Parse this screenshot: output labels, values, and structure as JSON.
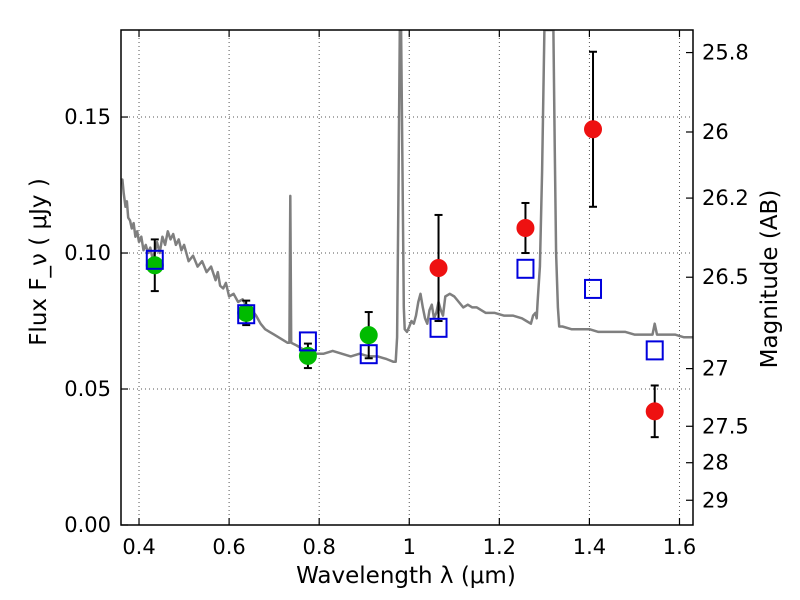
{
  "chart_data": {
    "type": "scatter",
    "title": "",
    "xlabel": "Wavelength  λ (μm)",
    "ylabel": "Flux  F_ν  ( μJy )",
    "ylabel_right": "Magnitude (AB)",
    "xlim": [
      0.36,
      1.63
    ],
    "ylim": [
      0.0,
      0.182
    ],
    "grid": true,
    "x_ticks": [
      0.4,
      0.6,
      0.8,
      1.0,
      1.2,
      1.4,
      1.6
    ],
    "x_tick_labels": [
      "0.4",
      "0.6",
      "0.8",
      "1",
      "1.2",
      "1.4",
      "1.6"
    ],
    "y_ticks": [
      0.0,
      0.05,
      0.1,
      0.15
    ],
    "y_tick_labels": [
      "0.00",
      "0.05",
      "0.10",
      "0.15"
    ],
    "right_ticks": [
      {
        "label": "25.8",
        "flux": 0.1737
      },
      {
        "label": "26",
        "flux": 0.1445
      },
      {
        "label": "26.2",
        "flux": 0.1202
      },
      {
        "label": "26.5",
        "flux": 0.0911
      },
      {
        "label": "27",
        "flux": 0.0575
      },
      {
        "label": "27.5",
        "flux": 0.0363
      },
      {
        "label": "28",
        "flux": 0.0229
      },
      {
        "label": "29",
        "flux": 0.0091
      }
    ],
    "series": [
      {
        "marker": "circle",
        "color": "#00bb00",
        "points": [
          {
            "x": 0.435,
            "y": 0.0955,
            "err": 0.0095
          },
          {
            "x": 0.638,
            "y": 0.078,
            "err": 0.0045
          },
          {
            "x": 0.775,
            "y": 0.0622,
            "err": 0.0045
          },
          {
            "x": 0.91,
            "y": 0.0698,
            "err": 0.0085
          }
        ]
      },
      {
        "marker": "circle",
        "color": "#ee1111",
        "points": [
          {
            "x": 1.065,
            "y": 0.0945,
            "err": 0.0195
          },
          {
            "x": 1.258,
            "y": 0.1092,
            "err": 0.0092
          },
          {
            "x": 1.408,
            "y": 0.1455,
            "err": 0.0285
          },
          {
            "x": 1.545,
            "y": 0.0418,
            "err": 0.0095
          }
        ]
      },
      {
        "marker": "square-open",
        "color": "#0000dd",
        "points": [
          {
            "x": 0.435,
            "y": 0.0975
          },
          {
            "x": 0.638,
            "y": 0.0775
          },
          {
            "x": 0.775,
            "y": 0.0675
          },
          {
            "x": 0.91,
            "y": 0.0628
          },
          {
            "x": 1.065,
            "y": 0.0725
          },
          {
            "x": 1.258,
            "y": 0.0942
          },
          {
            "x": 1.408,
            "y": 0.0868
          },
          {
            "x": 1.545,
            "y": 0.0642
          }
        ]
      },
      {
        "type": "line",
        "color": "#7f7f7f",
        "points": [
          [
            0.36,
            0.126
          ],
          [
            0.363,
            0.127
          ],
          [
            0.366,
            0.122
          ],
          [
            0.37,
            0.117
          ],
          [
            0.373,
            0.119
          ],
          [
            0.376,
            0.113
          ],
          [
            0.38,
            0.112
          ],
          [
            0.384,
            0.109
          ],
          [
            0.388,
            0.111
          ],
          [
            0.392,
            0.106
          ],
          [
            0.396,
            0.108
          ],
          [
            0.4,
            0.104
          ],
          [
            0.405,
            0.106
          ],
          [
            0.41,
            0.101
          ],
          [
            0.415,
            0.103
          ],
          [
            0.42,
            0.1
          ],
          [
            0.425,
            0.102
          ],
          [
            0.43,
            0.098
          ],
          [
            0.435,
            0.1
          ],
          [
            0.44,
            0.104
          ],
          [
            0.446,
            0.1
          ],
          [
            0.452,
            0.106
          ],
          [
            0.458,
            0.103
          ],
          [
            0.464,
            0.108
          ],
          [
            0.47,
            0.105
          ],
          [
            0.476,
            0.107
          ],
          [
            0.482,
            0.103
          ],
          [
            0.488,
            0.105
          ],
          [
            0.494,
            0.101
          ],
          [
            0.5,
            0.103
          ],
          [
            0.51,
            0.097
          ],
          [
            0.52,
            0.099
          ],
          [
            0.53,
            0.095
          ],
          [
            0.54,
            0.097
          ],
          [
            0.55,
            0.093
          ],
          [
            0.56,
            0.095
          ],
          [
            0.57,
            0.09
          ],
          [
            0.575,
            0.093
          ],
          [
            0.58,
            0.088
          ],
          [
            0.587,
            0.087
          ],
          [
            0.593,
            0.089
          ],
          [
            0.6,
            0.084
          ],
          [
            0.61,
            0.085
          ],
          [
            0.62,
            0.082
          ],
          [
            0.63,
            0.083
          ],
          [
            0.64,
            0.08
          ],
          [
            0.65,
            0.079
          ],
          [
            0.66,
            0.077
          ],
          [
            0.67,
            0.074
          ],
          [
            0.68,
            0.072
          ],
          [
            0.69,
            0.071
          ],
          [
            0.7,
            0.07
          ],
          [
            0.71,
            0.069
          ],
          [
            0.72,
            0.068
          ],
          [
            0.73,
            0.067
          ],
          [
            0.734,
            0.067
          ],
          [
            0.736,
            0.121
          ],
          [
            0.738,
            0.067
          ],
          [
            0.75,
            0.066
          ],
          [
            0.77,
            0.064
          ],
          [
            0.79,
            0.063
          ],
          [
            0.81,
            0.063
          ],
          [
            0.83,
            0.064
          ],
          [
            0.85,
            0.063
          ],
          [
            0.87,
            0.062
          ],
          [
            0.89,
            0.063
          ],
          [
            0.91,
            0.062
          ],
          [
            0.93,
            0.062
          ],
          [
            0.95,
            0.061
          ],
          [
            0.965,
            0.06
          ],
          [
            0.97,
            0.06
          ],
          [
            0.973,
            0.069
          ],
          [
            0.976,
            0.12
          ],
          [
            0.979,
            0.182
          ],
          [
            0.982,
            0.182
          ],
          [
            0.985,
            0.13
          ],
          [
            0.988,
            0.08
          ],
          [
            0.99,
            0.072
          ],
          [
            0.995,
            0.071
          ],
          [
            1.0,
            0.073
          ],
          [
            1.005,
            0.075
          ],
          [
            1.01,
            0.074
          ],
          [
            1.015,
            0.077
          ],
          [
            1.02,
            0.082
          ],
          [
            1.025,
            0.085
          ],
          [
            1.03,
            0.08
          ],
          [
            1.035,
            0.076
          ],
          [
            1.04,
            0.074
          ],
          [
            1.045,
            0.079
          ],
          [
            1.05,
            0.081
          ],
          [
            1.055,
            0.076
          ],
          [
            1.06,
            0.078
          ],
          [
            1.065,
            0.082
          ],
          [
            1.07,
            0.079
          ],
          [
            1.075,
            0.077
          ],
          [
            1.08,
            0.084
          ],
          [
            1.09,
            0.085
          ],
          [
            1.1,
            0.084
          ],
          [
            1.11,
            0.082
          ],
          [
            1.12,
            0.08
          ],
          [
            1.13,
            0.081
          ],
          [
            1.14,
            0.08
          ],
          [
            1.15,
            0.08
          ],
          [
            1.17,
            0.078
          ],
          [
            1.19,
            0.078
          ],
          [
            1.21,
            0.077
          ],
          [
            1.23,
            0.077
          ],
          [
            1.25,
            0.076
          ],
          [
            1.26,
            0.075
          ],
          [
            1.27,
            0.074
          ],
          [
            1.275,
            0.077
          ],
          [
            1.28,
            0.078
          ],
          [
            1.283,
            0.076
          ],
          [
            1.285,
            0.082
          ],
          [
            1.29,
            0.095
          ],
          [
            1.295,
            0.13
          ],
          [
            1.3,
            0.182
          ],
          [
            1.32,
            0.182
          ],
          [
            1.323,
            0.14
          ],
          [
            1.326,
            0.1
          ],
          [
            1.33,
            0.08
          ],
          [
            1.333,
            0.073
          ],
          [
            1.34,
            0.073
          ],
          [
            1.36,
            0.072
          ],
          [
            1.38,
            0.072
          ],
          [
            1.4,
            0.072
          ],
          [
            1.42,
            0.071
          ],
          [
            1.44,
            0.071
          ],
          [
            1.46,
            0.071
          ],
          [
            1.48,
            0.071
          ],
          [
            1.5,
            0.07
          ],
          [
            1.52,
            0.07
          ],
          [
            1.54,
            0.07
          ],
          [
            1.545,
            0.074
          ],
          [
            1.55,
            0.07
          ],
          [
            1.57,
            0.07
          ],
          [
            1.59,
            0.07
          ],
          [
            1.61,
            0.069
          ],
          [
            1.63,
            0.069
          ]
        ]
      }
    ]
  }
}
